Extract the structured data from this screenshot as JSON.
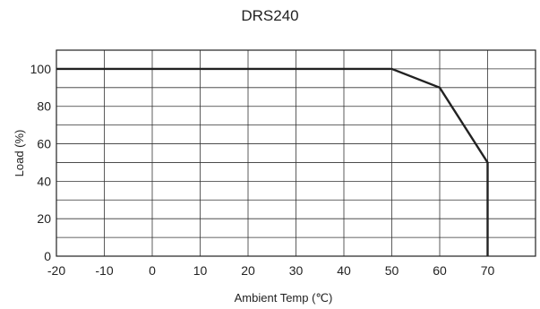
{
  "chart_data": {
    "type": "line",
    "title": "DRS240",
    "xlabel": "Ambient Temp (℃)",
    "ylabel": "Load (%)",
    "xlim": [
      -20,
      80
    ],
    "ylim": [
      0,
      110
    ],
    "x_ticks": [
      -20,
      -10,
      0,
      10,
      20,
      30,
      40,
      50,
      60,
      70
    ],
    "y_ticks": [
      0,
      20,
      40,
      60,
      80,
      100
    ],
    "grid": true,
    "series": [
      {
        "x": [
          -20,
          50,
          60,
          70,
          70
        ],
        "y": [
          100,
          100,
          90,
          50,
          0
        ]
      }
    ],
    "colors": {
      "line": "#222222",
      "grid": "#333333",
      "axis": "#222222"
    }
  }
}
